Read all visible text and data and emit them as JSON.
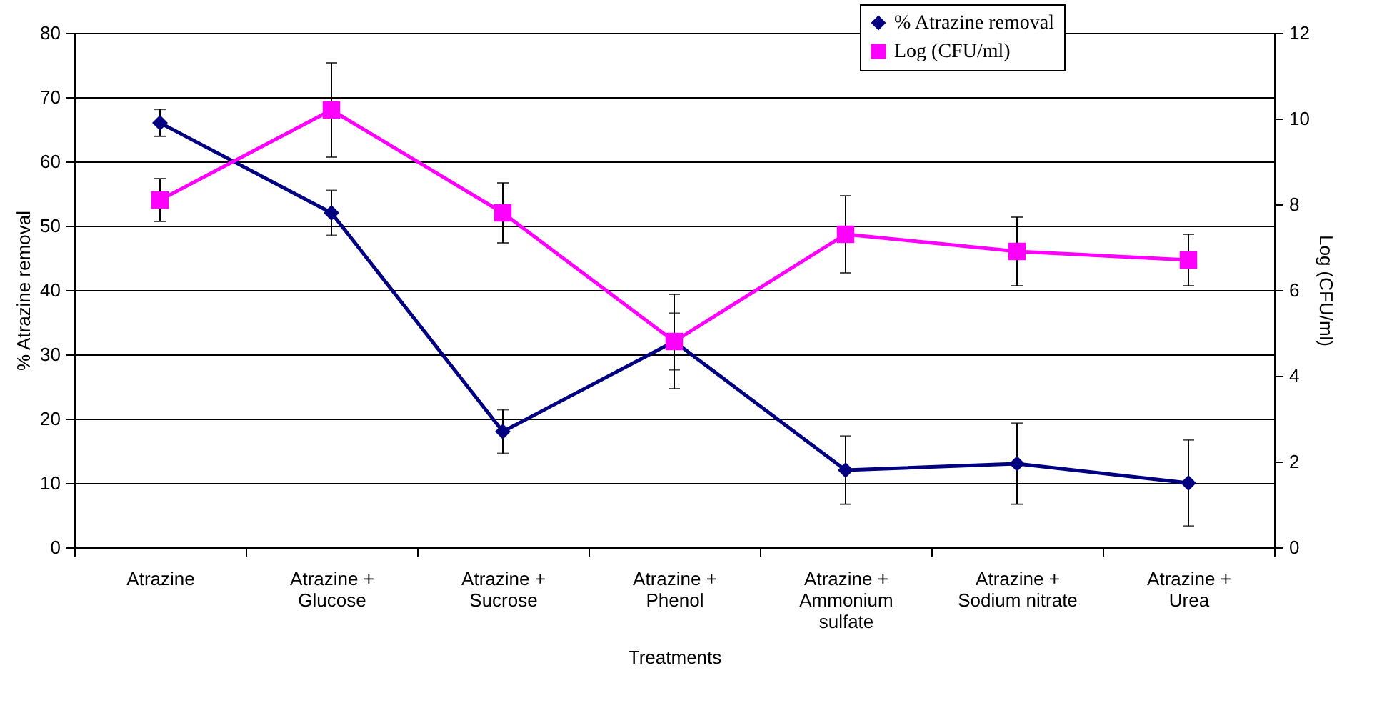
{
  "chart_data": {
    "type": "line",
    "xlabel": "Treatments",
    "ylabel": "% Atrazine removal",
    "y2label": "Log (CFU/ml)",
    "categories": [
      "Atrazine",
      "Atrazine +\nGlucose",
      "Atrazine +\nSucrose",
      "Atrazine +\nPhenol",
      "Atrazine +\nAmmonium\nsulfate",
      "Atrazine +\nSodium nitrate",
      "Atrazine +\nUrea"
    ],
    "series": [
      {
        "name": "% Atrazine removal",
        "color": "#000080",
        "marker": "diamond",
        "values": [
          66,
          52,
          18,
          32,
          12,
          13,
          10
        ],
        "errors": [
          2.1,
          3.5,
          3.4,
          4.4,
          5.3,
          6.3,
          6.7
        ]
      },
      {
        "name": "Log (CFU/ml)",
        "color": "#ff00ff",
        "marker": "square",
        "axis": "y2",
        "values": [
          8.1,
          10.2,
          7.8,
          4.8,
          7.3,
          6.9,
          6.7
        ],
        "errors": [
          0.5,
          1.1,
          0.7,
          1.1,
          0.9,
          0.8,
          0.6
        ]
      }
    ],
    "ylim": [
      0,
      80
    ],
    "yticks": [
      0,
      10,
      20,
      30,
      40,
      50,
      60,
      70,
      80
    ],
    "y2lim": [
      0,
      12
    ],
    "y2ticks": [
      0,
      2,
      4,
      6,
      8,
      10,
      12
    ],
    "grid": "y",
    "legend": "top right"
  }
}
